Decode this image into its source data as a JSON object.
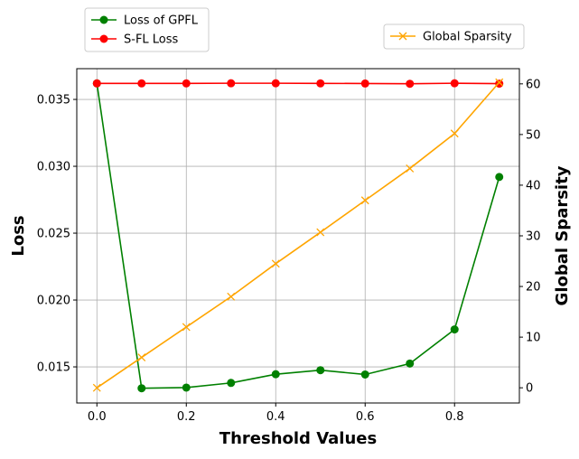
{
  "chart_data": {
    "type": "line",
    "title": "",
    "xlabel": "Threshold Values",
    "ylabel": "Loss",
    "y2label": "Global Sparsity",
    "x": [
      0.0,
      0.1,
      0.2,
      0.3,
      0.4,
      0.5,
      0.6,
      0.7,
      0.8,
      0.9
    ],
    "xlim": [
      -0.045,
      0.945
    ],
    "ylim": [
      0.0123,
      0.0373
    ],
    "y2lim": [
      -3,
      63
    ],
    "xticks": [
      0.0,
      0.2,
      0.4,
      0.6,
      0.8
    ],
    "xtick_labels": [
      "0.0",
      "0.2",
      "0.4",
      "0.6",
      "0.8"
    ],
    "yticks": [
      0.015,
      0.02,
      0.025,
      0.03,
      0.035
    ],
    "ytick_labels": [
      "0.015",
      "0.020",
      "0.025",
      "0.030",
      "0.035"
    ],
    "y2ticks": [
      0,
      10,
      20,
      30,
      40,
      50,
      60
    ],
    "y2tick_labels": [
      "0",
      "10",
      "20",
      "30",
      "40",
      "50",
      "60"
    ],
    "grid": true,
    "series": [
      {
        "name": "Loss of GPFL",
        "axis": "left",
        "marker": "circle",
        "color": "#008000",
        "values": [
          0.0362,
          0.0134,
          0.01345,
          0.0138,
          0.01445,
          0.01475,
          0.01443,
          0.01525,
          0.0178,
          0.0292
        ]
      },
      {
        "name": "S-FL Loss",
        "axis": "left",
        "marker": "circle",
        "color": "#ff0000",
        "values": [
          0.0362,
          0.0362,
          0.0362,
          0.03621,
          0.03621,
          0.0362,
          0.03619,
          0.03617,
          0.03621,
          0.03618
        ]
      },
      {
        "name": "Global Sparsity",
        "axis": "right",
        "marker": "x",
        "color": "#ffa500",
        "values": [
          0,
          6,
          12,
          18,
          24.5,
          30.7,
          37,
          43.3,
          50.2,
          60.3
        ]
      }
    ],
    "legend_left": [
      "Loss of GPFL",
      "S-FL Loss"
    ],
    "legend_left_placement": "above plot, left",
    "legend_right": [
      "Global Sparsity"
    ],
    "legend_right_placement": "above plot, right"
  }
}
